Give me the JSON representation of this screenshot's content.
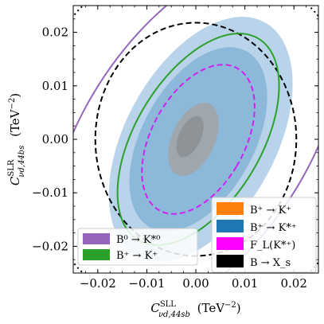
{
  "chart_data": {
    "type": "contour",
    "xlabel": "C^SLL_νd,44sb (TeV^-2)",
    "ylabel": "C^SLR_νd,44bs (TeV^-2)",
    "xlim": [
      -0.025,
      0.025
    ],
    "ylim": [
      -0.025,
      0.025
    ],
    "xticks": [
      -0.02,
      -0.01,
      0.0,
      0.01,
      0.02
    ],
    "yticks": [
      -0.02,
      -0.01,
      0.0,
      0.01,
      0.02
    ],
    "xtick_labels": [
      "−0.02",
      "−0.01",
      "0.00",
      "0.01",
      "0.02"
    ],
    "ytick_labels": [
      "−0.02",
      "−0.01",
      "0.00",
      "0.01",
      "0.02"
    ],
    "grid": false,
    "filled_regions": [
      {
        "name": "B+ → K*+ (outer)",
        "color": "#b9d4ea",
        "cx": 0.001,
        "cy": 0.0,
        "rx": 0.015,
        "ry": 0.0255,
        "angle_deg": -33
      },
      {
        "name": "B+ → K*+ (inner)",
        "color": "#8cb8da",
        "cx": 0.0005,
        "cy": 0.0,
        "rx": 0.0112,
        "ry": 0.0192,
        "angle_deg": -33
      },
      {
        "name": "B+ → K+ (outer)",
        "color": "#9fa6ac",
        "cx": -0.0005,
        "cy": 0.0,
        "rx": 0.0043,
        "ry": 0.0074,
        "angle_deg": -28
      },
      {
        "name": "B+ → K+ (inner)",
        "color": "#8e9398",
        "cx": -0.0012,
        "cy": 0.0005,
        "rx": 0.0022,
        "ry": 0.0042,
        "angle_deg": -28
      }
    ],
    "contours": [
      {
        "name": "B → X_s",
        "color": "#000000",
        "dash": "dashed",
        "cx": 0.0,
        "cy": 0.0,
        "rx": 0.0205,
        "ry": 0.0218,
        "angle_deg": 0
      },
      {
        "name": "F_L(K*+)",
        "color": "#d020f0",
        "dash": "dashed",
        "cx": 0.0005,
        "cy": 0.0,
        "rx": 0.0093,
        "ry": 0.0155,
        "angle_deg": -33
      },
      {
        "name": "B+ → K+ (green)",
        "color": "#2ca02c",
        "dash": "solid",
        "cx": 0.0005,
        "cy": 0.0,
        "rx": 0.0125,
        "ry": 0.0225,
        "angle_deg": -35
      },
      {
        "name": "B0 → K*0 (purple)",
        "color": "#9467bd",
        "dash": "solid",
        "cx": 0.0,
        "cy": 0.0,
        "rx": 0.022,
        "ry": 0.0395,
        "angle_deg": -38
      },
      {
        "name": "B → X_s (outer dotted)",
        "color": "#000000",
        "dash": "dotted",
        "cx": 0.0,
        "cy": 0.0,
        "rx": 0.034,
        "ry": 0.034,
        "angle_deg": 0
      }
    ],
    "legend_left": {
      "position": "lower-left",
      "entries": [
        {
          "label": "B⁰ → K*⁰",
          "color": "#9467bd"
        },
        {
          "label": "B⁺ → K⁺",
          "color": "#2ca02c"
        }
      ]
    },
    "legend_right": {
      "position": "lower-right",
      "entries": [
        {
          "label": "B⁺ → K⁺",
          "color": "#ff7f0e"
        },
        {
          "label": "B⁺ → K*⁺",
          "color": "#1f77b4"
        },
        {
          "label": "F_L(K*⁺)",
          "color": "#ff00ff"
        },
        {
          "label": "B → X_s",
          "color": "#000000"
        }
      ]
    }
  }
}
